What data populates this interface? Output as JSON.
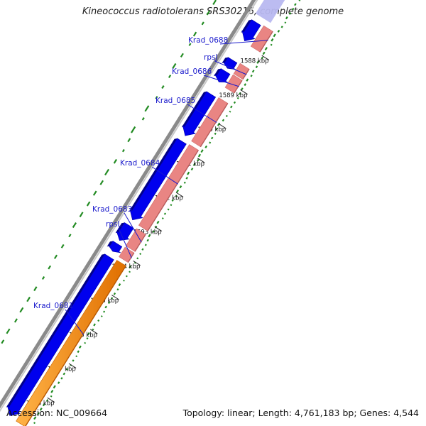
{
  "header": {
    "title": "Kineococcus radiotolerans SRS30216, complete genome"
  },
  "footer": {
    "accession": "Accession: NC_009664",
    "summary": "Topology: linear; Length: 4,761,183 bp; Genes: 4,544"
  },
  "ruler": {
    "unit": "kbp",
    "ticks": [
      {
        "value": 1588,
        "label": "1588 kbp"
      },
      {
        "value": 1589,
        "label": "1589 kbp"
      },
      {
        "value": 1590,
        "label": "1590 kbp"
      },
      {
        "value": 1591,
        "label": "1591 kbp"
      },
      {
        "value": 1592,
        "label": "1592 kbp"
      },
      {
        "value": 1593,
        "label": "1593 kbp"
      },
      {
        "value": 1594,
        "label": "1594 kbp"
      },
      {
        "value": 1595,
        "label": "1595 kbp"
      },
      {
        "value": 1596,
        "label": "1596 kbp"
      },
      {
        "value": 1597,
        "label": "1597 kbp"
      },
      {
        "value": 1598,
        "label": "1598 kbp"
      }
    ]
  },
  "genes": [
    {
      "label": "Krad_0688",
      "start": 1587.35,
      "end": 1587.95,
      "color": "#e98583"
    },
    {
      "label": "rpsJ",
      "start": 1588.45,
      "end": 1588.75,
      "color": "#e98583"
    },
    {
      "label": "Krad_0686",
      "start": 1588.78,
      "end": 1589.15,
      "color": "#e98583"
    },
    {
      "label": "Krad_0685",
      "start": 1589.45,
      "end": 1590.72,
      "color": "#e98583"
    },
    {
      "label": "Krad_0684",
      "start": 1590.82,
      "end": 1593.18,
      "color": "#e98583"
    },
    {
      "label": "Krad_0683",
      "start": 1593.28,
      "end": 1593.78,
      "color": "#e98583"
    },
    {
      "label": "rpsL",
      "start": 1593.82,
      "end": 1594.1,
      "color": "#e98583"
    },
    {
      "label": "Krad_0681",
      "start": 1594.2,
      "end": 1598.9,
      "color": "#ff8c00"
    }
  ],
  "colors": {
    "cds": "#0000ee",
    "cds_highlight": "#b8b8f0",
    "rna_gene": "#e98583",
    "orange_gene": "#ff8c00",
    "gc_skew": "#228b22",
    "ruler": "#222222",
    "label": "#1a1acc"
  }
}
